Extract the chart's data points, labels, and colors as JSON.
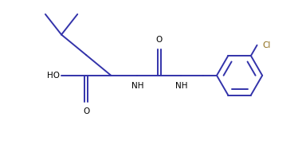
{
  "background_color": "#ffffff",
  "bond_color": "#3333aa",
  "cl_color": "#8B6914",
  "text_color": "#000000",
  "line_width": 1.4,
  "fig_width": 3.74,
  "fig_height": 1.86,
  "dpi": 100,
  "xlim": [
    0,
    10
  ],
  "ylim": [
    0,
    5
  ]
}
